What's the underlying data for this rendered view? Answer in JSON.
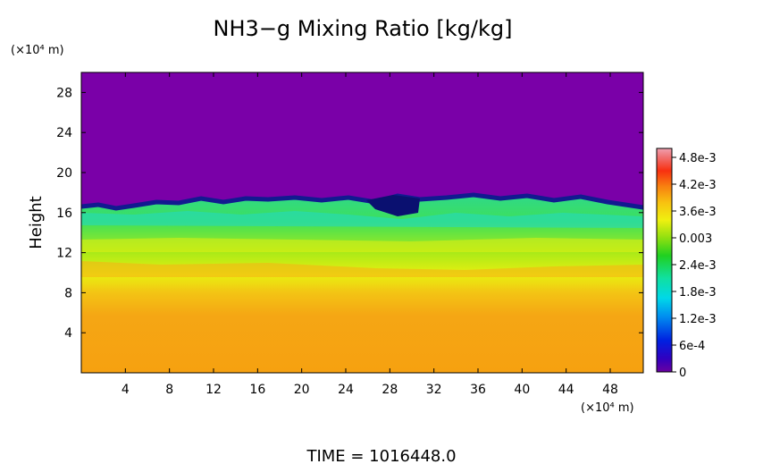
{
  "chart_data": {
    "type": "heatmap",
    "title": "NH3−g Mixing Ratio [kg/kg]",
    "ylabel": "Height",
    "y_unit": "(×10⁴ m)",
    "x_unit": "(×10⁴ m)",
    "footer": "TIME  =  1016448.0",
    "x_ticks": [
      "4",
      "8",
      "12",
      "16",
      "20",
      "24",
      "28",
      "32",
      "36",
      "40",
      "44",
      "48"
    ],
    "y_ticks": [
      "4",
      "8",
      "12",
      "16",
      "20",
      "24",
      "28"
    ],
    "xlim": [
      0,
      51
    ],
    "ylim": [
      0,
      30
    ],
    "colorbar": {
      "labels": [
        "4.8e-3",
        "4.2e-3",
        "3.6e-3",
        "0.003",
        "2.4e-3",
        "1.8e-3",
        "1.2e-3",
        "6e-4",
        "0"
      ],
      "range": [
        0,
        0.005
      ]
    },
    "colors": {
      "above": "#7a00a8",
      "boundary": "#101090",
      "band_green": "#30e070",
      "yellow": "#e8f010",
      "orange": "#f5a20f"
    }
  }
}
